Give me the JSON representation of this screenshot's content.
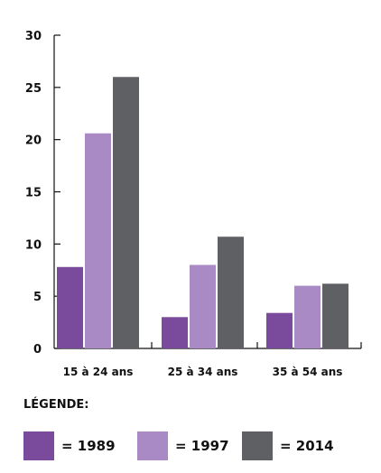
{
  "chart_data": {
    "type": "bar",
    "categories": [
      "15 à 24 ans",
      "25 à 34 ans",
      "35 à 54 ans"
    ],
    "series": [
      {
        "name": "1989",
        "values": [
          7.8,
          3.0,
          3.4
        ],
        "color": "#7a4a9c"
      },
      {
        "name": "1997",
        "values": [
          20.6,
          8.0,
          6.0
        ],
        "color": "#a98ac4"
      },
      {
        "name": "2014",
        "values": [
          26.0,
          10.7,
          6.2
        ],
        "color": "#5f6063"
      }
    ],
    "ylim": [
      0,
      30
    ],
    "yticks": [
      0,
      5,
      10,
      15,
      20,
      25,
      30
    ],
    "grid": false,
    "legend": {
      "title": "LÉGENDE:",
      "placement": "bottom",
      "items": [
        "= 1989",
        "= 1997",
        "= 2014"
      ]
    }
  }
}
